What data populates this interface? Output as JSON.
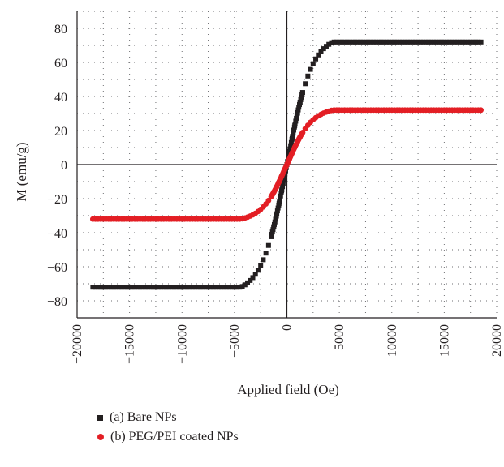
{
  "chart_data": {
    "type": "scatter",
    "xlabel": "Applied field (Oe)",
    "ylabel": "M (emu/g)",
    "xlim": [
      -20000,
      20000
    ],
    "ylim": [
      -90,
      90
    ],
    "xticks": [
      -20000,
      -15000,
      -10000,
      -5000,
      0,
      5000,
      10000,
      15000,
      20000
    ],
    "yticks": [
      -80,
      -60,
      -40,
      -20,
      0,
      20,
      40,
      60,
      80
    ],
    "xtick_labels": [
      "−20000",
      "−15000",
      "−10000",
      "−5000",
      "0",
      "5000",
      "10000",
      "15000",
      "20000"
    ],
    "ytick_labels": [
      "−80",
      "−60",
      "−40",
      "−20",
      "0",
      "20",
      "40",
      "60",
      "80"
    ],
    "grid": true,
    "legend_position": "bottom-left",
    "series": [
      {
        "name": "(a) Bare NPs",
        "marker": "square",
        "color": "#231f20",
        "x_range": [
          -18500,
          18500
        ],
        "saturation": 72,
        "points": [
          [
            -18500,
            -72
          ],
          [
            -15000,
            -71.5
          ],
          [
            -10000,
            -70
          ],
          [
            -7500,
            -68
          ],
          [
            -5000,
            -65
          ],
          [
            -3000,
            -60
          ],
          [
            -2000,
            -55
          ],
          [
            -1000,
            -40
          ],
          [
            -500,
            -20
          ],
          [
            0,
            0
          ],
          [
            500,
            20
          ],
          [
            1000,
            40
          ],
          [
            2000,
            55
          ],
          [
            3000,
            60
          ],
          [
            5000,
            65
          ],
          [
            7500,
            68
          ],
          [
            10000,
            70
          ],
          [
            15000,
            71.5
          ],
          [
            18500,
            72
          ]
        ]
      },
      {
        "name": "(b) PEG/PEI coated NPs",
        "marker": "circle",
        "color": "#e31e24",
        "x_range": [
          -18500,
          18500
        ],
        "saturation": 32,
        "points": [
          [
            -18500,
            -32
          ],
          [
            -15000,
            -31.5
          ],
          [
            -10000,
            -31
          ],
          [
            -5000,
            -28.5
          ],
          [
            -2500,
            -25
          ],
          [
            -1000,
            -20
          ],
          [
            -500,
            -14
          ],
          [
            0,
            0
          ],
          [
            500,
            14
          ],
          [
            1000,
            20
          ],
          [
            2500,
            25
          ],
          [
            5000,
            28.5
          ],
          [
            10000,
            31
          ],
          [
            15000,
            31.5
          ],
          [
            18500,
            32
          ]
        ]
      }
    ]
  }
}
